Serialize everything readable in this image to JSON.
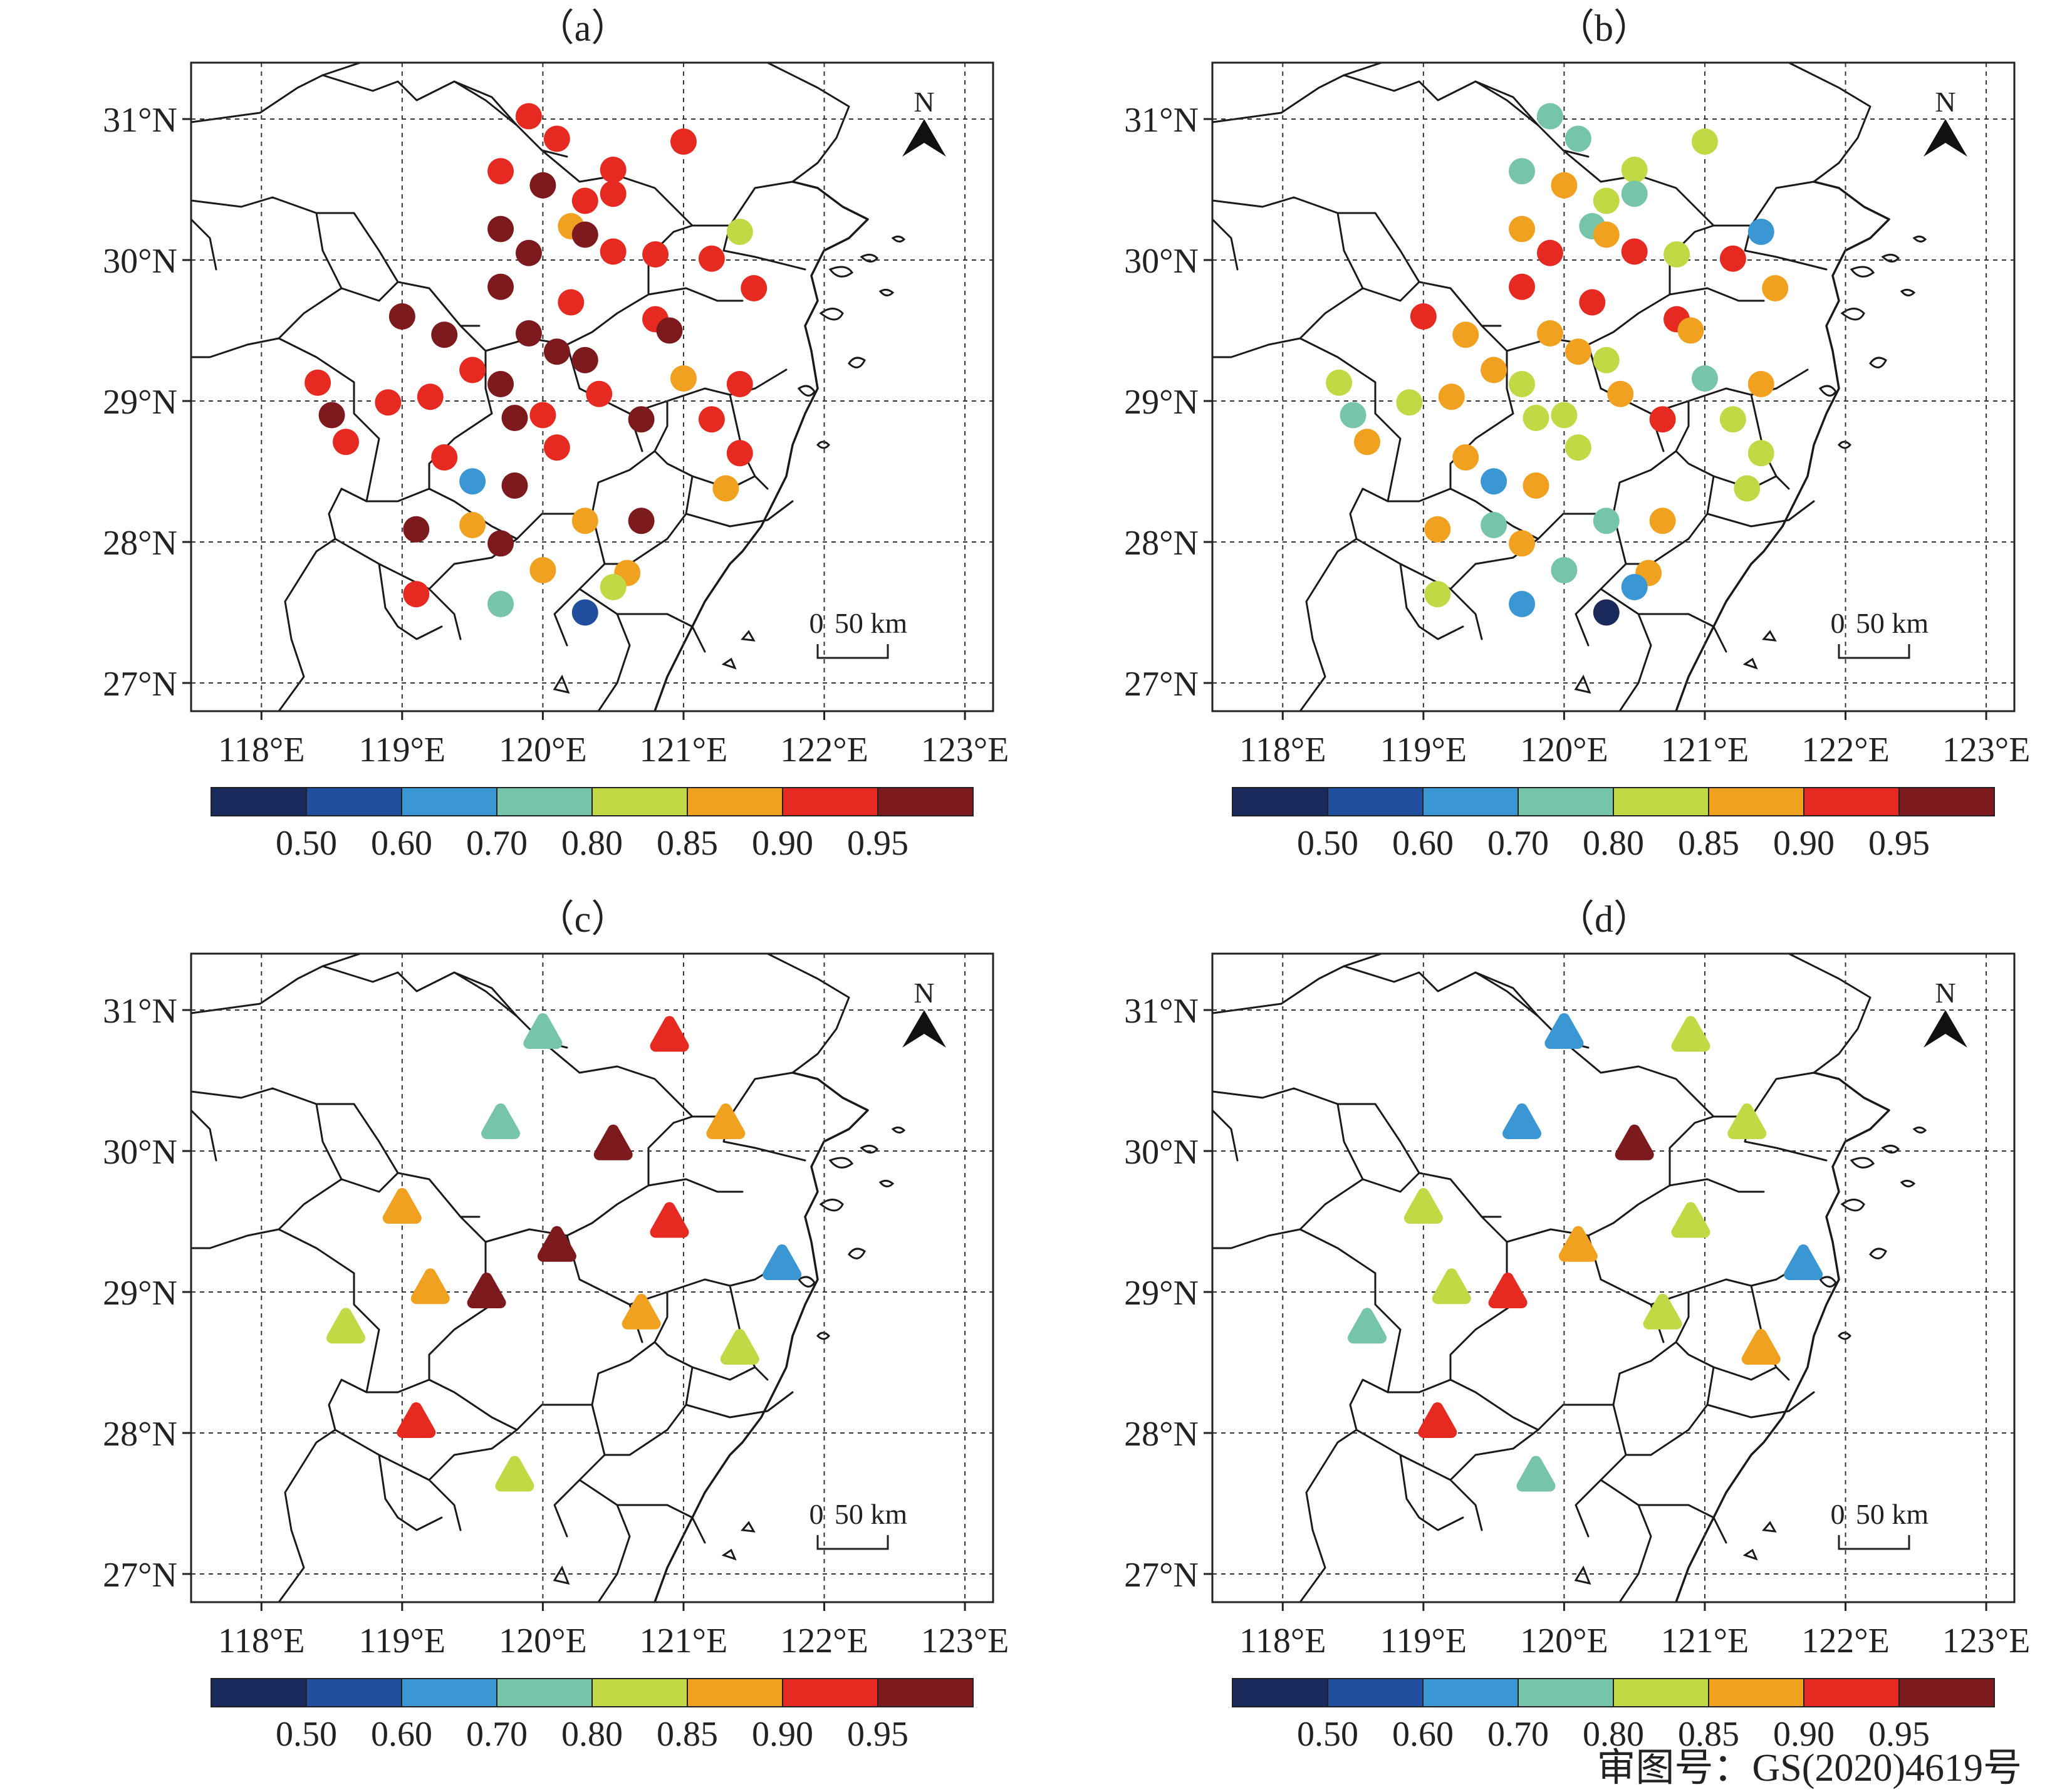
{
  "panels": [
    {
      "label": "（a）",
      "marker": "circle",
      "stations": [
        [
          119.9,
          31.02,
          0.92
        ],
        [
          120.1,
          30.86,
          0.92
        ],
        [
          121.0,
          30.84,
          0.92
        ],
        [
          119.7,
          30.63,
          0.92
        ],
        [
          120.0,
          30.53,
          0.97
        ],
        [
          120.5,
          30.64,
          0.92
        ],
        [
          120.5,
          30.47,
          0.92
        ],
        [
          120.3,
          30.42,
          0.92
        ],
        [
          120.2,
          30.24,
          0.87
        ],
        [
          120.3,
          30.18,
          0.97
        ],
        [
          121.4,
          30.2,
          0.82
        ],
        [
          119.7,
          30.22,
          0.97
        ],
        [
          119.9,
          30.05,
          0.97
        ],
        [
          120.5,
          30.06,
          0.92
        ],
        [
          120.8,
          30.04,
          0.92
        ],
        [
          121.2,
          30.01,
          0.92
        ],
        [
          121.5,
          29.8,
          0.92
        ],
        [
          119.7,
          29.81,
          0.97
        ],
        [
          120.2,
          29.7,
          0.92
        ],
        [
          119.0,
          29.6,
          0.97
        ],
        [
          119.3,
          29.47,
          0.97
        ],
        [
          119.9,
          29.48,
          0.97
        ],
        [
          120.8,
          29.58,
          0.92
        ],
        [
          120.9,
          29.5,
          0.97
        ],
        [
          120.1,
          29.35,
          0.97
        ],
        [
          120.3,
          29.29,
          0.97
        ],
        [
          119.5,
          29.22,
          0.92
        ],
        [
          119.7,
          29.12,
          0.97
        ],
        [
          118.4,
          29.13,
          0.92
        ],
        [
          118.9,
          28.99,
          0.92
        ],
        [
          119.2,
          29.03,
          0.92
        ],
        [
          120.4,
          29.05,
          0.92
        ],
        [
          121.0,
          29.16,
          0.87
        ],
        [
          121.4,
          29.12,
          0.92
        ],
        [
          118.5,
          28.9,
          0.97
        ],
        [
          118.6,
          28.71,
          0.92
        ],
        [
          119.8,
          28.88,
          0.97
        ],
        [
          120.0,
          28.9,
          0.92
        ],
        [
          120.7,
          28.87,
          0.97
        ],
        [
          121.2,
          28.87,
          0.92
        ],
        [
          119.3,
          28.6,
          0.92
        ],
        [
          120.1,
          28.67,
          0.92
        ],
        [
          121.4,
          28.63,
          0.92
        ],
        [
          119.5,
          28.43,
          0.65
        ],
        [
          119.8,
          28.4,
          0.97
        ],
        [
          121.3,
          28.38,
          0.87
        ],
        [
          120.3,
          28.15,
          0.87
        ],
        [
          120.7,
          28.15,
          0.97
        ],
        [
          119.1,
          28.09,
          0.97
        ],
        [
          119.5,
          28.12,
          0.87
        ],
        [
          119.7,
          27.99,
          0.97
        ],
        [
          120.0,
          27.8,
          0.87
        ],
        [
          120.6,
          27.78,
          0.87
        ],
        [
          120.5,
          27.68,
          0.82
        ],
        [
          119.1,
          27.63,
          0.92
        ],
        [
          119.7,
          27.56,
          0.75
        ],
        [
          120.3,
          27.5,
          0.55
        ]
      ]
    },
    {
      "label": "（b）",
      "marker": "circle",
      "stations": [
        [
          119.9,
          31.02,
          0.75
        ],
        [
          120.1,
          30.86,
          0.75
        ],
        [
          121.0,
          30.84,
          0.82
        ],
        [
          119.7,
          30.63,
          0.75
        ],
        [
          120.0,
          30.53,
          0.87
        ],
        [
          120.5,
          30.64,
          0.82
        ],
        [
          120.5,
          30.47,
          0.75
        ],
        [
          120.3,
          30.42,
          0.82
        ],
        [
          120.2,
          30.24,
          0.75
        ],
        [
          120.3,
          30.18,
          0.87
        ],
        [
          121.4,
          30.2,
          0.65
        ],
        [
          119.7,
          30.22,
          0.87
        ],
        [
          119.9,
          30.05,
          0.92
        ],
        [
          120.5,
          30.06,
          0.92
        ],
        [
          120.8,
          30.04,
          0.82
        ],
        [
          121.2,
          30.01,
          0.92
        ],
        [
          121.5,
          29.8,
          0.87
        ],
        [
          119.7,
          29.81,
          0.92
        ],
        [
          120.2,
          29.7,
          0.92
        ],
        [
          119.0,
          29.6,
          0.92
        ],
        [
          119.3,
          29.47,
          0.87
        ],
        [
          119.9,
          29.48,
          0.87
        ],
        [
          120.8,
          29.58,
          0.92
        ],
        [
          120.9,
          29.5,
          0.87
        ],
        [
          120.1,
          29.35,
          0.87
        ],
        [
          120.3,
          29.29,
          0.82
        ],
        [
          119.5,
          29.22,
          0.87
        ],
        [
          119.7,
          29.12,
          0.82
        ],
        [
          118.4,
          29.13,
          0.82
        ],
        [
          118.9,
          28.99,
          0.82
        ],
        [
          119.2,
          29.03,
          0.87
        ],
        [
          120.4,
          29.05,
          0.87
        ],
        [
          121.0,
          29.16,
          0.75
        ],
        [
          121.4,
          29.12,
          0.87
        ],
        [
          118.5,
          28.9,
          0.75
        ],
        [
          118.6,
          28.71,
          0.87
        ],
        [
          119.8,
          28.88,
          0.82
        ],
        [
          120.0,
          28.9,
          0.82
        ],
        [
          120.7,
          28.87,
          0.92
        ],
        [
          121.2,
          28.87,
          0.82
        ],
        [
          119.3,
          28.6,
          0.87
        ],
        [
          120.1,
          28.67,
          0.82
        ],
        [
          121.4,
          28.63,
          0.82
        ],
        [
          119.5,
          28.43,
          0.65
        ],
        [
          119.8,
          28.4,
          0.87
        ],
        [
          121.3,
          28.38,
          0.82
        ],
        [
          120.3,
          28.15,
          0.75
        ],
        [
          120.7,
          28.15,
          0.87
        ],
        [
          119.1,
          28.09,
          0.87
        ],
        [
          119.5,
          28.12,
          0.75
        ],
        [
          119.7,
          27.99,
          0.87
        ],
        [
          120.0,
          27.8,
          0.75
        ],
        [
          120.6,
          27.78,
          0.87
        ],
        [
          120.5,
          27.68,
          0.65
        ],
        [
          119.1,
          27.63,
          0.82
        ],
        [
          119.7,
          27.56,
          0.65
        ],
        [
          120.3,
          27.5,
          0.45
        ]
      ]
    },
    {
      "label": "（c）",
      "marker": "triangle",
      "stations": [
        [
          120.0,
          30.84,
          0.75
        ],
        [
          120.9,
          30.82,
          0.92
        ],
        [
          119.7,
          30.2,
          0.75
        ],
        [
          120.5,
          30.05,
          0.97
        ],
        [
          121.3,
          30.2,
          0.87
        ],
        [
          119.0,
          29.6,
          0.87
        ],
        [
          120.9,
          29.5,
          0.92
        ],
        [
          120.1,
          29.33,
          0.97
        ],
        [
          121.7,
          29.2,
          0.65
        ],
        [
          119.2,
          29.03,
          0.87
        ],
        [
          119.6,
          29.0,
          0.97
        ],
        [
          118.6,
          28.75,
          0.82
        ],
        [
          120.7,
          28.85,
          0.87
        ],
        [
          121.4,
          28.6,
          0.82
        ],
        [
          119.1,
          28.08,
          0.92
        ],
        [
          119.8,
          27.7,
          0.82
        ]
      ]
    },
    {
      "label": "（d）",
      "marker": "triangle",
      "stations": [
        [
          120.0,
          30.84,
          0.65
        ],
        [
          120.9,
          30.82,
          0.82
        ],
        [
          119.7,
          30.2,
          0.65
        ],
        [
          120.5,
          30.05,
          0.97
        ],
        [
          121.3,
          30.2,
          0.82
        ],
        [
          119.0,
          29.6,
          0.82
        ],
        [
          120.9,
          29.5,
          0.82
        ],
        [
          120.1,
          29.33,
          0.87
        ],
        [
          121.7,
          29.2,
          0.65
        ],
        [
          119.2,
          29.03,
          0.82
        ],
        [
          119.6,
          29.0,
          0.92
        ],
        [
          118.6,
          28.75,
          0.75
        ],
        [
          120.7,
          28.85,
          0.82
        ],
        [
          121.4,
          28.6,
          0.87
        ],
        [
          119.1,
          28.08,
          0.92
        ],
        [
          119.8,
          27.7,
          0.75
        ]
      ]
    }
  ],
  "lat_ticks": [
    {
      "value": 31,
      "label": "31°N"
    },
    {
      "value": 30,
      "label": "30°N"
    },
    {
      "value": 29,
      "label": "29°N"
    },
    {
      "value": 28,
      "label": "28°N"
    },
    {
      "value": 27,
      "label": "27°N"
    }
  ],
  "lon_ticks": [
    {
      "value": 118,
      "label": "118°E"
    },
    {
      "value": 119,
      "label": "119°E"
    },
    {
      "value": 120,
      "label": "120°E"
    },
    {
      "value": 121,
      "label": "121°E"
    },
    {
      "value": 122,
      "label": "122°E"
    },
    {
      "value": 123,
      "label": "123°E"
    }
  ],
  "extent": {
    "lon": [
      117.5,
      123.2
    ],
    "lat": [
      26.8,
      31.4
    ]
  },
  "north_label": "N",
  "scalebar": {
    "zero": "0",
    "label": "50 km"
  },
  "legend": {
    "colors": [
      "#1b2a5c",
      "#1f4f9e",
      "#3a97d4",
      "#76c4aa",
      "#c2d945",
      "#f0a120",
      "#e62a22",
      "#7d1a1e"
    ],
    "breaks": [
      0.5,
      0.6,
      0.7,
      0.8,
      0.85,
      0.9,
      0.95
    ],
    "labels": [
      "0.50",
      "0.60",
      "0.70",
      "0.80",
      "0.85",
      "0.90",
      "0.95"
    ]
  },
  "approval": "审图号：GS(2020)4619号"
}
